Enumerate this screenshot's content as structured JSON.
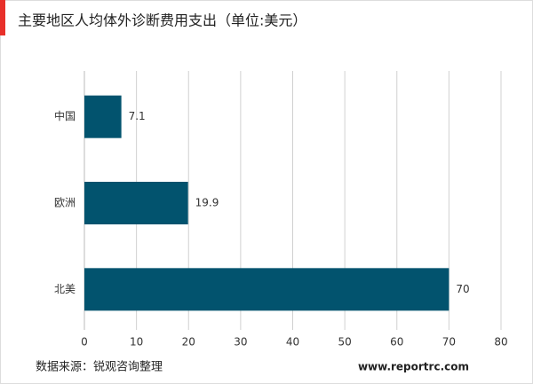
{
  "chart_data": {
    "type": "hbar",
    "title": "主要地区人均体外诊断费用支出（单位:美元）",
    "categories": [
      "中国",
      "欧洲",
      "北美"
    ],
    "values": [
      7.1,
      19.9,
      70
    ],
    "color": "#02536e",
    "xlim": [
      0,
      80
    ],
    "xticks": [
      0,
      10,
      20,
      30,
      40,
      50,
      60,
      70,
      80
    ],
    "grid": true,
    "source": "数据来源：锐观咨询整理",
    "website": "www.reportrc.com"
  }
}
